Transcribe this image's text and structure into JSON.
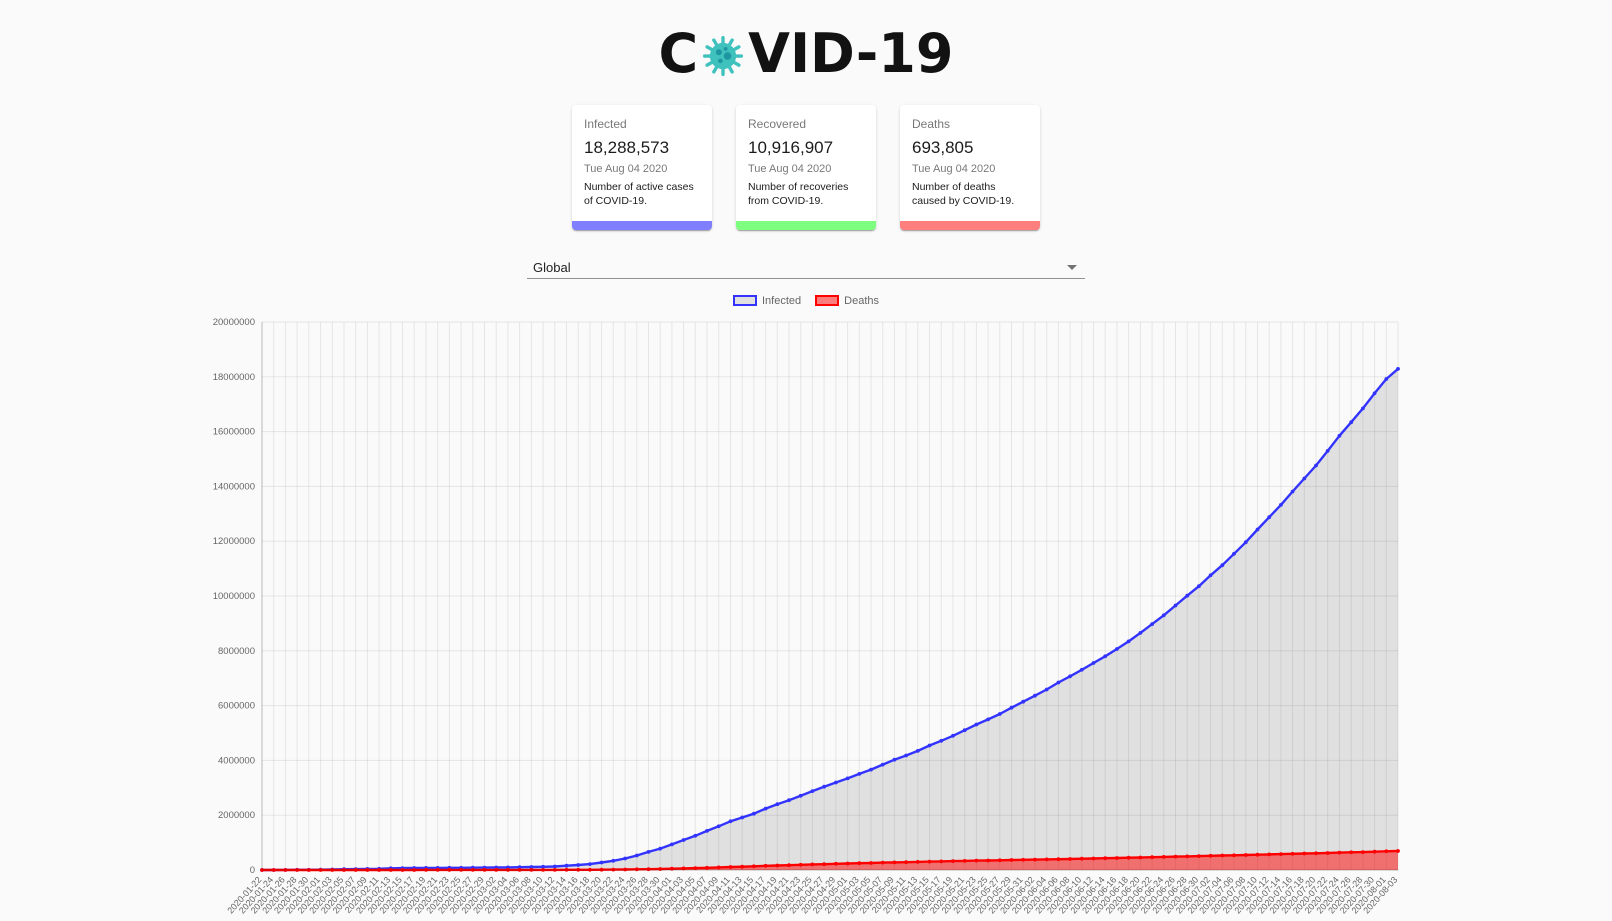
{
  "logo": {
    "prefix": "C",
    "suffix": "VID-19",
    "virus_body_color": "#3fc1bd",
    "virus_dot_color": "#1d96a1"
  },
  "cards": [
    {
      "title": "Infected",
      "value": "18,288,573",
      "date": "Tue Aug 04 2020",
      "description": "Number of active cases of COVID-19.",
      "bar_color": "rgba(0,0,255,0.5)"
    },
    {
      "title": "Recovered",
      "value": "10,916,907",
      "date": "Tue Aug 04 2020",
      "description": "Number of recoveries from COVID-19.",
      "bar_color": "rgba(0,255,0,0.5)"
    },
    {
      "title": "Deaths",
      "value": "693,805",
      "date": "Tue Aug 04 2020",
      "description": "Number of deaths caused by COVID-19.",
      "bar_color": "rgba(255,0,0,0.5)"
    }
  ],
  "country_select": {
    "value": "Global"
  },
  "chart_data": {
    "type": "line",
    "title": "",
    "xlabel": "",
    "ylabel": "",
    "ylim": [
      0,
      20000000
    ],
    "y_tick_step": 2000000,
    "grid": true,
    "legend_position": "top",
    "x": [
      "2020-01-22",
      "2020-01-24",
      "2020-01-26",
      "2020-01-28",
      "2020-01-30",
      "2020-02-01",
      "2020-02-03",
      "2020-02-05",
      "2020-02-07",
      "2020-02-09",
      "2020-02-11",
      "2020-02-13",
      "2020-02-15",
      "2020-02-17",
      "2020-02-19",
      "2020-02-21",
      "2020-02-23",
      "2020-02-25",
      "2020-02-27",
      "2020-02-29",
      "2020-03-02",
      "2020-03-04",
      "2020-03-06",
      "2020-03-08",
      "2020-03-10",
      "2020-03-12",
      "2020-03-14",
      "2020-03-16",
      "2020-03-18",
      "2020-03-20",
      "2020-03-22",
      "2020-03-24",
      "2020-03-26",
      "2020-03-28",
      "2020-03-30",
      "2020-04-01",
      "2020-04-03",
      "2020-04-05",
      "2020-04-07",
      "2020-04-09",
      "2020-04-11",
      "2020-04-13",
      "2020-04-15",
      "2020-04-17",
      "2020-04-19",
      "2020-04-21",
      "2020-04-23",
      "2020-04-25",
      "2020-04-27",
      "2020-04-29",
      "2020-05-01",
      "2020-05-03",
      "2020-05-05",
      "2020-05-07",
      "2020-05-09",
      "2020-05-11",
      "2020-05-13",
      "2020-05-15",
      "2020-05-17",
      "2020-05-19",
      "2020-05-21",
      "2020-05-23",
      "2020-05-25",
      "2020-05-27",
      "2020-05-29",
      "2020-05-31",
      "2020-06-02",
      "2020-06-04",
      "2020-06-06",
      "2020-06-08",
      "2020-06-10",
      "2020-06-12",
      "2020-06-14",
      "2020-06-16",
      "2020-06-18",
      "2020-06-20",
      "2020-06-22",
      "2020-06-24",
      "2020-06-26",
      "2020-06-28",
      "2020-06-30",
      "2020-07-02",
      "2020-07-04",
      "2020-07-06",
      "2020-07-08",
      "2020-07-10",
      "2020-07-12",
      "2020-07-14",
      "2020-07-16",
      "2020-07-18",
      "2020-07-20",
      "2020-07-22",
      "2020-07-24",
      "2020-07-26",
      "2020-07-28",
      "2020-07-30",
      "2020-08-01",
      "2020-08-03"
    ],
    "series": [
      {
        "name": "Infected",
        "border_color": "#3333ff",
        "fill_color": "rgba(0,0,0,0.1)",
        "values": [
          555,
          941,
          2118,
          5578,
          8235,
          12038,
          19881,
          27635,
          34391,
          40150,
          44802,
          60368,
          69030,
          71328,
          75639,
          76936,
          78985,
          80415,
          82754,
          86011,
          90306,
          94919,
          101801,
          109821,
          118610,
          128343,
          156094,
          181527,
          214910,
          272166,
          337020,
          418045,
          529591,
          660706,
          782365,
          932605,
          1095917,
          1249754,
          1426096,
          1595350,
          1777666,
          1917320,
          2056054,
          2240190,
          2401378,
          2549123,
          2708885,
          2881062,
          3041764,
          3193886,
          3343777,
          3506729,
          3662691,
          3845718,
          4024009,
          4177502,
          4347018,
          4542347,
          4713620,
          4897492,
          5102424,
          5311871,
          5495061,
          5691790,
          5924562,
          6140934,
          6360234,
          6587364,
          6843700,
          7069278,
          7306316,
          7553652,
          7797575,
          8065615,
          8344615,
          8654891,
          8974795,
          9296433,
          9653048,
          10010423,
          10357662,
          10754230,
          11125245,
          11539906,
          11962911,
          12428546,
          12877249,
          13323530,
          13812430,
          14288166,
          14764421,
          15296926,
          15847347,
          16341920,
          16846506,
          17396943,
          17918582,
          18288573
        ]
      },
      {
        "name": "Deaths",
        "border_color": "#ff0000",
        "fill_color": "rgba(255,0,0,0.5)",
        "values": [
          17,
          26,
          56,
          131,
          171,
          259,
          426,
          565,
          719,
          910,
          1115,
          1371,
          1666,
          1775,
          2122,
          2247,
          2469,
          2708,
          2858,
          2941,
          3085,
          3254,
          3460,
          3802,
          4262,
          4720,
          5819,
          7126,
          8733,
          11299,
          14623,
          18625,
          23970,
          30652,
          37582,
          46809,
          58787,
          69374,
          81937,
          95455,
          108503,
          119483,
          134177,
          153822,
          165054,
          176984,
          190999,
          202837,
          211167,
          227638,
          238619,
          247470,
          257239,
          269567,
          279135,
          286330,
          297197,
          307666,
          315185,
          323256,
          332924,
          342120,
          346232,
          355575,
          364891,
          371166,
          380332,
          388041,
          395797,
          402204,
          411879,
          420993,
          430310,
          438368,
          447439,
          456726,
          468070,
          477807,
          488160,
          498110,
          508054,
          517877,
          528360,
          536893,
          547801,
          558366,
          568981,
          578628,
          590086,
          601822,
          610190,
          621787,
          633506,
          644517,
          654327,
          667808,
          680894,
          693805
        ]
      }
    ]
  }
}
